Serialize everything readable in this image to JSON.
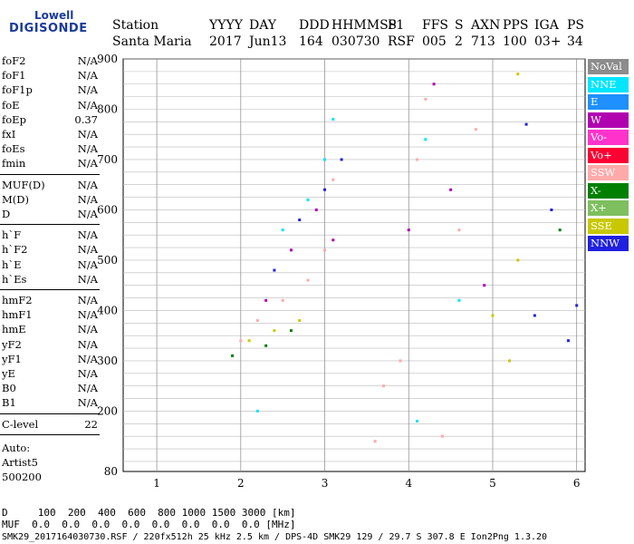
{
  "logo": {
    "line1": "Lowell",
    "line2": "DIGISONDE"
  },
  "header": {
    "labels": [
      "Station",
      "YYYY",
      "DAY",
      "DDD",
      "HHMMSS",
      "P1",
      "FFS",
      "S",
      "AXN",
      "PPS",
      "IGA",
      "PS"
    ],
    "values": [
      "Santa Maria",
      "2017",
      "Jun13",
      "164",
      "030730",
      "RSF",
      "005",
      "2",
      "713",
      "100",
      "03+",
      "34"
    ]
  },
  "params": [
    [
      {
        "name": "foF2",
        "value": "N/A"
      },
      {
        "name": "foF1",
        "value": "N/A"
      },
      {
        "name": "foF1p",
        "value": "N/A"
      },
      {
        "name": "foE",
        "value": "N/A"
      },
      {
        "name": "foEp",
        "value": "0.37"
      },
      {
        "name": "fxI",
        "value": "N/A"
      },
      {
        "name": "foEs",
        "value": "N/A"
      },
      {
        "name": "fmin",
        "value": "N/A"
      }
    ],
    [
      {
        "name": "MUF(D)",
        "value": "N/A"
      },
      {
        "name": "M(D)",
        "value": "N/A"
      },
      {
        "name": "D",
        "value": "N/A"
      }
    ],
    [
      {
        "name": "h`F",
        "value": "N/A"
      },
      {
        "name": "h`F2",
        "value": "N/A"
      },
      {
        "name": "h`E",
        "value": "N/A"
      },
      {
        "name": "h`Es",
        "value": "N/A"
      }
    ],
    [
      {
        "name": "hmF2",
        "value": "N/A"
      },
      {
        "name": "hmF1",
        "value": "N/A"
      },
      {
        "name": "hmE",
        "value": "N/A"
      },
      {
        "name": "yF2",
        "value": "N/A"
      },
      {
        "name": "yF1",
        "value": "N/A"
      },
      {
        "name": "yE",
        "value": "N/A"
      },
      {
        "name": "B0",
        "value": "N/A"
      },
      {
        "name": "B1",
        "value": "N/A"
      }
    ],
    [
      {
        "name": "C-level",
        "value": "22"
      }
    ]
  ],
  "auto": {
    "label": "Auto:",
    "artist": "Artist5",
    "version": "500200"
  },
  "legend": [
    {
      "label": "NoVal",
      "color": "#8c8c8c"
    },
    {
      "label": "NNE",
      "color": "#00e5ff"
    },
    {
      "label": "E",
      "color": "#1e90ff"
    },
    {
      "label": "W",
      "color": "#b000b0"
    },
    {
      "label": "Vo-",
      "color": "#ff33cc"
    },
    {
      "label": "Vo+",
      "color": "#ff0033"
    },
    {
      "label": "SSW",
      "color": "#ffaaaa"
    },
    {
      "label": "X-",
      "color": "#008000"
    },
    {
      "label": "X+",
      "color": "#7fbf5f"
    },
    {
      "label": "SSE",
      "color": "#c8c800"
    },
    {
      "label": "NNW",
      "color": "#2020e0"
    }
  ],
  "bottom": {
    "d_row": "D     100  200  400  600  800 1000 1500 3000 [km]",
    "muf_row": "MUF  0.0  0.0  0.0  0.0  0.0  0.0  0.0  0.0 [MHz]",
    "footer": "SMK29_2017164030730.RSF / 220fx512h 25 kHz 2.5 km / DPS-4D SMK29 129 / 29.7 S 307.8 E Ion2Png 1.3.20"
  },
  "chart_data": {
    "type": "scatter",
    "xlim": [
      0.6,
      6.1
    ],
    "ylim": [
      80,
      900
    ],
    "x_ticks": [
      1,
      2,
      3,
      4,
      5,
      6
    ],
    "y_ticks": [
      80,
      200,
      300,
      400,
      500,
      600,
      700,
      800,
      900
    ],
    "grid": true,
    "legend_position": "right",
    "series": [
      {
        "color": "#ffaaaa",
        "points": [
          [
            2.0,
            340
          ],
          [
            2.2,
            380
          ],
          [
            2.5,
            420
          ],
          [
            2.8,
            460
          ],
          [
            3.0,
            520
          ],
          [
            3.1,
            660
          ],
          [
            3.6,
            140
          ],
          [
            3.7,
            250
          ],
          [
            3.9,
            300
          ],
          [
            4.1,
            700
          ],
          [
            4.2,
            820
          ],
          [
            4.4,
            150
          ],
          [
            4.6,
            560
          ],
          [
            4.8,
            760
          ],
          [
            5.2,
            300
          ]
        ]
      },
      {
        "color": "#00e5ff",
        "points": [
          [
            2.2,
            200
          ],
          [
            2.5,
            560
          ],
          [
            2.8,
            620
          ],
          [
            3.0,
            700
          ],
          [
            3.1,
            780
          ],
          [
            4.1,
            180
          ],
          [
            4.2,
            740
          ],
          [
            4.6,
            420
          ]
        ]
      },
      {
        "color": "#b000b0",
        "points": [
          [
            2.3,
            420
          ],
          [
            2.6,
            520
          ],
          [
            2.9,
            600
          ],
          [
            3.1,
            540
          ],
          [
            4.0,
            560
          ],
          [
            4.3,
            850
          ],
          [
            4.5,
            640
          ],
          [
            4.9,
            450
          ]
        ]
      },
      {
        "color": "#2020e0",
        "points": [
          [
            2.4,
            480
          ],
          [
            2.7,
            580
          ],
          [
            3.0,
            640
          ],
          [
            3.2,
            700
          ],
          [
            5.4,
            770
          ],
          [
            5.5,
            390
          ],
          [
            5.7,
            600
          ],
          [
            5.9,
            340
          ],
          [
            6.0,
            410
          ]
        ]
      },
      {
        "color": "#c8c800",
        "points": [
          [
            2.1,
            340
          ],
          [
            2.4,
            360
          ],
          [
            2.7,
            380
          ],
          [
            5.0,
            390
          ],
          [
            5.2,
            300
          ],
          [
            5.3,
            500
          ],
          [
            5.3,
            870
          ]
        ]
      },
      {
        "color": "#008000",
        "points": [
          [
            1.9,
            310
          ],
          [
            2.3,
            330
          ],
          [
            2.6,
            360
          ],
          [
            5.8,
            560
          ]
        ]
      }
    ]
  }
}
